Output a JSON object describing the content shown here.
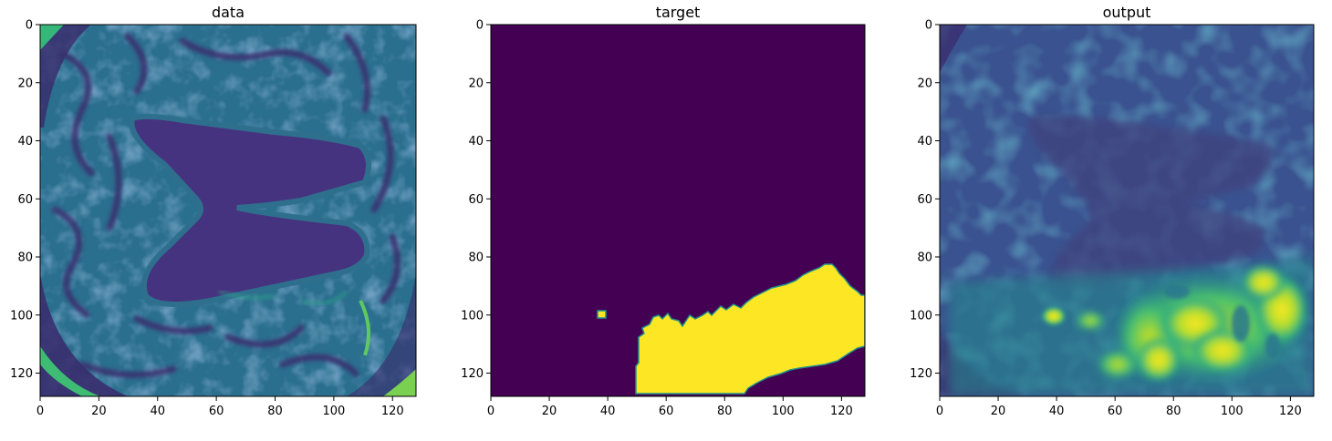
{
  "chart_data": [
    {
      "type": "heatmap",
      "title": "data",
      "colormap": "viridis",
      "image_size": [
        128,
        128
      ],
      "xticks": [
        0,
        20,
        40,
        60,
        80,
        100,
        120
      ],
      "yticks": [
        0,
        20,
        40,
        60,
        80,
        100,
        120
      ],
      "xlim": [
        0,
        128
      ],
      "ylim": [
        128,
        0
      ],
      "content": "brain MRI slice (intensity image) showing lateral ventricles"
    },
    {
      "type": "heatmap",
      "title": "target",
      "colormap": "viridis",
      "image_size": [
        128,
        128
      ],
      "xticks": [
        0,
        20,
        40,
        60,
        80,
        100,
        120
      ],
      "yticks": [
        0,
        20,
        40,
        60,
        80,
        100,
        120
      ],
      "xlim": [
        0,
        128
      ],
      "ylim": [
        128,
        0
      ],
      "values_present": [
        0,
        1
      ],
      "mask_extent": {
        "x": [
          49,
          128
        ],
        "y": [
          82,
          128
        ]
      },
      "small_blob": {
        "x": [
          37,
          40
        ],
        "y": [
          98,
          100
        ]
      }
    },
    {
      "type": "heatmap",
      "title": "output",
      "colormap": "viridis",
      "image_size": [
        128,
        128
      ],
      "xticks": [
        0,
        20,
        40,
        60,
        80,
        100,
        120
      ],
      "yticks": [
        0,
        20,
        40,
        60,
        80,
        100,
        120
      ],
      "xlim": [
        0,
        128
      ],
      "ylim": [
        128,
        0
      ],
      "content": "predicted probability map"
    }
  ],
  "colors": {
    "viridis_low": "#440154",
    "viridis_mid": "#21918c",
    "viridis_high": "#fde725"
  }
}
